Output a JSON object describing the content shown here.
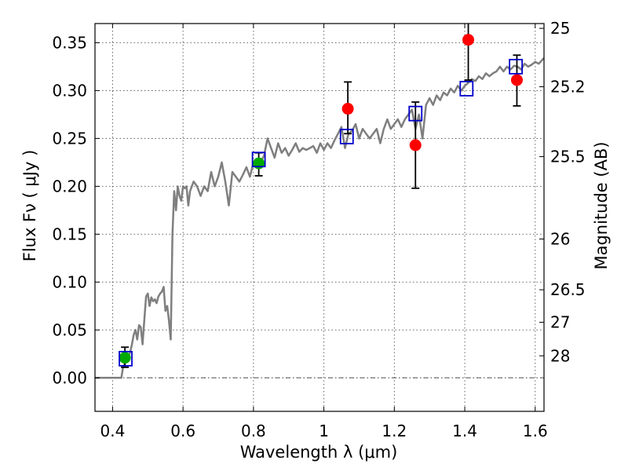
{
  "chart_data": {
    "type": "scatter",
    "xlabel": "Wavelength  λ (μm)",
    "ylabel": "Flux  Fν  ( μJy )",
    "ylabel_right": "Magnitude (AB)",
    "xlim": [
      0.35,
      1.625
    ],
    "ylim": [
      -0.035,
      0.37
    ],
    "grid": true,
    "x_ticks": [
      0.4,
      0.6,
      0.8,
      1.0,
      1.2,
      1.4,
      1.6
    ],
    "x_tick_labels": [
      "0.4",
      "0.6",
      "0.8",
      "1",
      "1.2",
      "1.4",
      "1.6"
    ],
    "y_ticks": [
      0.0,
      0.05,
      0.1,
      0.15,
      0.2,
      0.25,
      0.3,
      0.35
    ],
    "y_tick_labels": [
      "0.00",
      "0.05",
      "0.10",
      "0.15",
      "0.20",
      "0.25",
      "0.30",
      "0.35"
    ],
    "right_ticks": [
      {
        "label": "25",
        "flux": 0.365
      },
      {
        "label": "25.2",
        "flux": 0.304
      },
      {
        "label": "25.5",
        "flux": 0.231
      },
      {
        "label": "26",
        "flux": 0.145
      },
      {
        "label": "26.5",
        "flux": 0.092
      },
      {
        "label": "27",
        "flux": 0.058
      },
      {
        "label": "28",
        "flux": 0.023
      }
    ],
    "colors": {
      "model": "#7f7f7f",
      "observed_red": "#ff0000",
      "observed_green": "#00aa00",
      "model_flux_box": "#0000cc",
      "errorbar": "#000000",
      "zero_line": "#555555"
    },
    "model_sed": {
      "x": [
        0.35,
        0.42,
        0.425,
        0.43,
        0.44,
        0.445,
        0.45,
        0.455,
        0.46,
        0.465,
        0.47,
        0.475,
        0.48,
        0.485,
        0.49,
        0.495,
        0.5,
        0.505,
        0.51,
        0.515,
        0.52,
        0.525,
        0.53,
        0.535,
        0.54,
        0.545,
        0.55,
        0.555,
        0.56,
        0.565,
        0.57,
        0.575,
        0.58,
        0.585,
        0.59,
        0.595,
        0.6,
        0.605,
        0.61,
        0.615,
        0.62,
        0.63,
        0.64,
        0.65,
        0.66,
        0.67,
        0.68,
        0.69,
        0.7,
        0.71,
        0.72,
        0.73,
        0.74,
        0.75,
        0.76,
        0.77,
        0.78,
        0.79,
        0.8,
        0.81,
        0.82,
        0.83,
        0.84,
        0.85,
        0.86,
        0.87,
        0.88,
        0.89,
        0.9,
        0.91,
        0.92,
        0.93,
        0.94,
        0.95,
        0.96,
        0.97,
        0.98,
        0.99,
        1.0,
        1.01,
        1.02,
        1.03,
        1.04,
        1.05,
        1.06,
        1.07,
        1.08,
        1.09,
        1.1,
        1.11,
        1.12,
        1.13,
        1.14,
        1.15,
        1.16,
        1.17,
        1.18,
        1.19,
        1.2,
        1.21,
        1.22,
        1.23,
        1.24,
        1.25,
        1.26,
        1.27,
        1.28,
        1.29,
        1.3,
        1.31,
        1.32,
        1.33,
        1.34,
        1.35,
        1.36,
        1.37,
        1.38,
        1.39,
        1.4,
        1.41,
        1.42,
        1.43,
        1.44,
        1.45,
        1.46,
        1.47,
        1.48,
        1.49,
        1.5,
        1.51,
        1.52,
        1.53,
        1.54,
        1.55,
        1.56,
        1.57,
        1.58,
        1.59,
        1.6,
        1.61,
        1.625
      ],
      "y": [
        0.0,
        0.0,
        0.0,
        0.012,
        0.018,
        0.022,
        0.027,
        0.035,
        0.045,
        0.05,
        0.04,
        0.055,
        0.053,
        0.035,
        0.06,
        0.085,
        0.088,
        0.075,
        0.084,
        0.08,
        0.082,
        0.078,
        0.085,
        0.088,
        0.09,
        0.095,
        0.07,
        0.075,
        0.06,
        0.04,
        0.15,
        0.195,
        0.175,
        0.2,
        0.19,
        0.185,
        0.2,
        0.198,
        0.2,
        0.18,
        0.195,
        0.205,
        0.2,
        0.19,
        0.2,
        0.195,
        0.215,
        0.2,
        0.21,
        0.225,
        0.205,
        0.18,
        0.215,
        0.21,
        0.205,
        0.212,
        0.22,
        0.21,
        0.225,
        0.22,
        0.225,
        0.232,
        0.25,
        0.24,
        0.23,
        0.245,
        0.235,
        0.24,
        0.232,
        0.238,
        0.245,
        0.236,
        0.24,
        0.238,
        0.24,
        0.242,
        0.235,
        0.245,
        0.238,
        0.245,
        0.24,
        0.248,
        0.255,
        0.262,
        0.24,
        0.255,
        0.258,
        0.265,
        0.25,
        0.26,
        0.255,
        0.25,
        0.255,
        0.26,
        0.245,
        0.26,
        0.27,
        0.26,
        0.265,
        0.27,
        0.262,
        0.27,
        0.275,
        0.28,
        0.26,
        0.275,
        0.25,
        0.285,
        0.292,
        0.285,
        0.295,
        0.29,
        0.298,
        0.295,
        0.302,
        0.298,
        0.305,
        0.3,
        0.305,
        0.308,
        0.312,
        0.31,
        0.315,
        0.312,
        0.318,
        0.315,
        0.318,
        0.32,
        0.325,
        0.32,
        0.325,
        0.322,
        0.326,
        0.325,
        0.322,
        0.328,
        0.325,
        0.327,
        0.33,
        0.328,
        0.334
      ]
    },
    "observed_points": [
      {
        "x": 0.435,
        "y": 0.021,
        "err_low": 0.01,
        "err_high": 0.011,
        "color": "green"
      },
      {
        "x": 0.815,
        "y": 0.224,
        "err_low": 0.013,
        "err_high": 0.011,
        "color": "green"
      },
      {
        "x": 1.068,
        "y": 0.281,
        "err_low": 0.026,
        "err_high": 0.028,
        "color": "red"
      },
      {
        "x": 1.26,
        "y": 0.243,
        "err_low": 0.045,
        "err_high": 0.045,
        "color": "red"
      },
      {
        "x": 1.41,
        "y": 0.353,
        "err_low": 0.042,
        "err_high": 0.02,
        "color": "red"
      },
      {
        "x": 1.548,
        "y": 0.311,
        "err_low": 0.027,
        "err_high": 0.026,
        "color": "red"
      }
    ],
    "model_flux_boxes": [
      {
        "x": 0.437,
        "y": 0.02
      },
      {
        "x": 0.815,
        "y": 0.228
      },
      {
        "x": 1.065,
        "y": 0.252
      },
      {
        "x": 1.26,
        "y": 0.276
      },
      {
        "x": 1.405,
        "y": 0.302
      },
      {
        "x": 1.545,
        "y": 0.325
      }
    ]
  }
}
